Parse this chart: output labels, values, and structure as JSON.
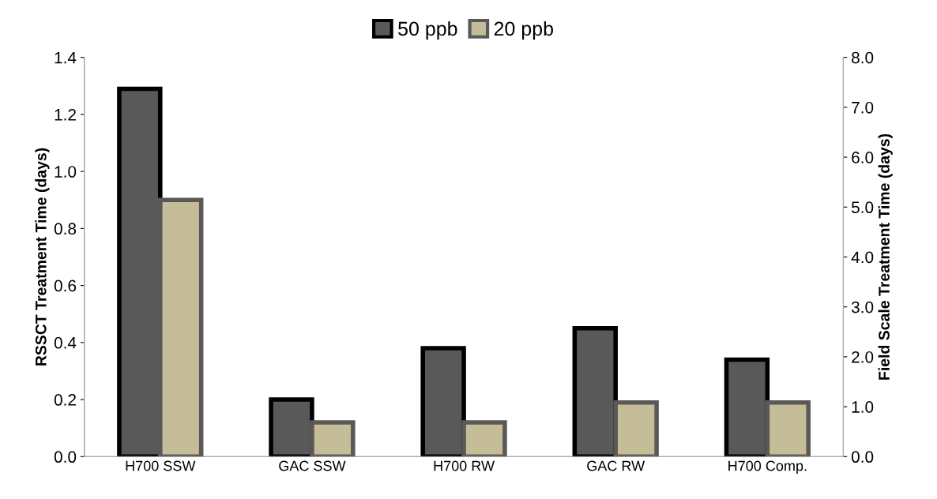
{
  "chart_data": {
    "type": "bar",
    "categories": [
      "H700 SSW",
      "GAC SSW",
      "H700 RW",
      "GAC RW",
      "H700 Comp."
    ],
    "series": [
      {
        "name": "50 ppb",
        "color": "#595959",
        "values": [
          1.29,
          0.2,
          0.38,
          0.45,
          0.34
        ]
      },
      {
        "name": "20 ppb",
        "color": "#c4bd97",
        "values": [
          0.9,
          0.12,
          0.12,
          0.19,
          0.19
        ]
      }
    ],
    "ylabel": "RSSCT Treatment Time (days)",
    "y2label": "Field Scale Treatment Time (days)",
    "ylim": [
      0,
      1.4
    ],
    "yticks": [
      {
        "value": 0,
        "label": "0.0"
      },
      {
        "value": 0.2,
        "label": "0.2"
      },
      {
        "value": 0.4,
        "label": "0.4"
      },
      {
        "value": 0.6,
        "label": "0.6"
      },
      {
        "value": 0.8,
        "label": "0.8"
      },
      {
        "value": 1.0,
        "label": "1.0"
      },
      {
        "value": 1.2,
        "label": "1.2"
      },
      {
        "value": 1.4,
        "label": "1.4"
      }
    ],
    "y2lim": [
      0,
      8
    ],
    "y2ticks": [
      {
        "value": 0,
        "label": "0.0"
      },
      {
        "value": 1,
        "label": "1.0"
      },
      {
        "value": 2,
        "label": "2.0"
      },
      {
        "value": 3,
        "label": "3.0"
      },
      {
        "value": 4,
        "label": "4.0"
      },
      {
        "value": 5,
        "label": "5.0"
      },
      {
        "value": 6,
        "label": "6.0"
      },
      {
        "value": 7,
        "label": "7.0"
      },
      {
        "value": 8,
        "label": "8.0"
      }
    ],
    "legend": "top",
    "grid": false
  }
}
